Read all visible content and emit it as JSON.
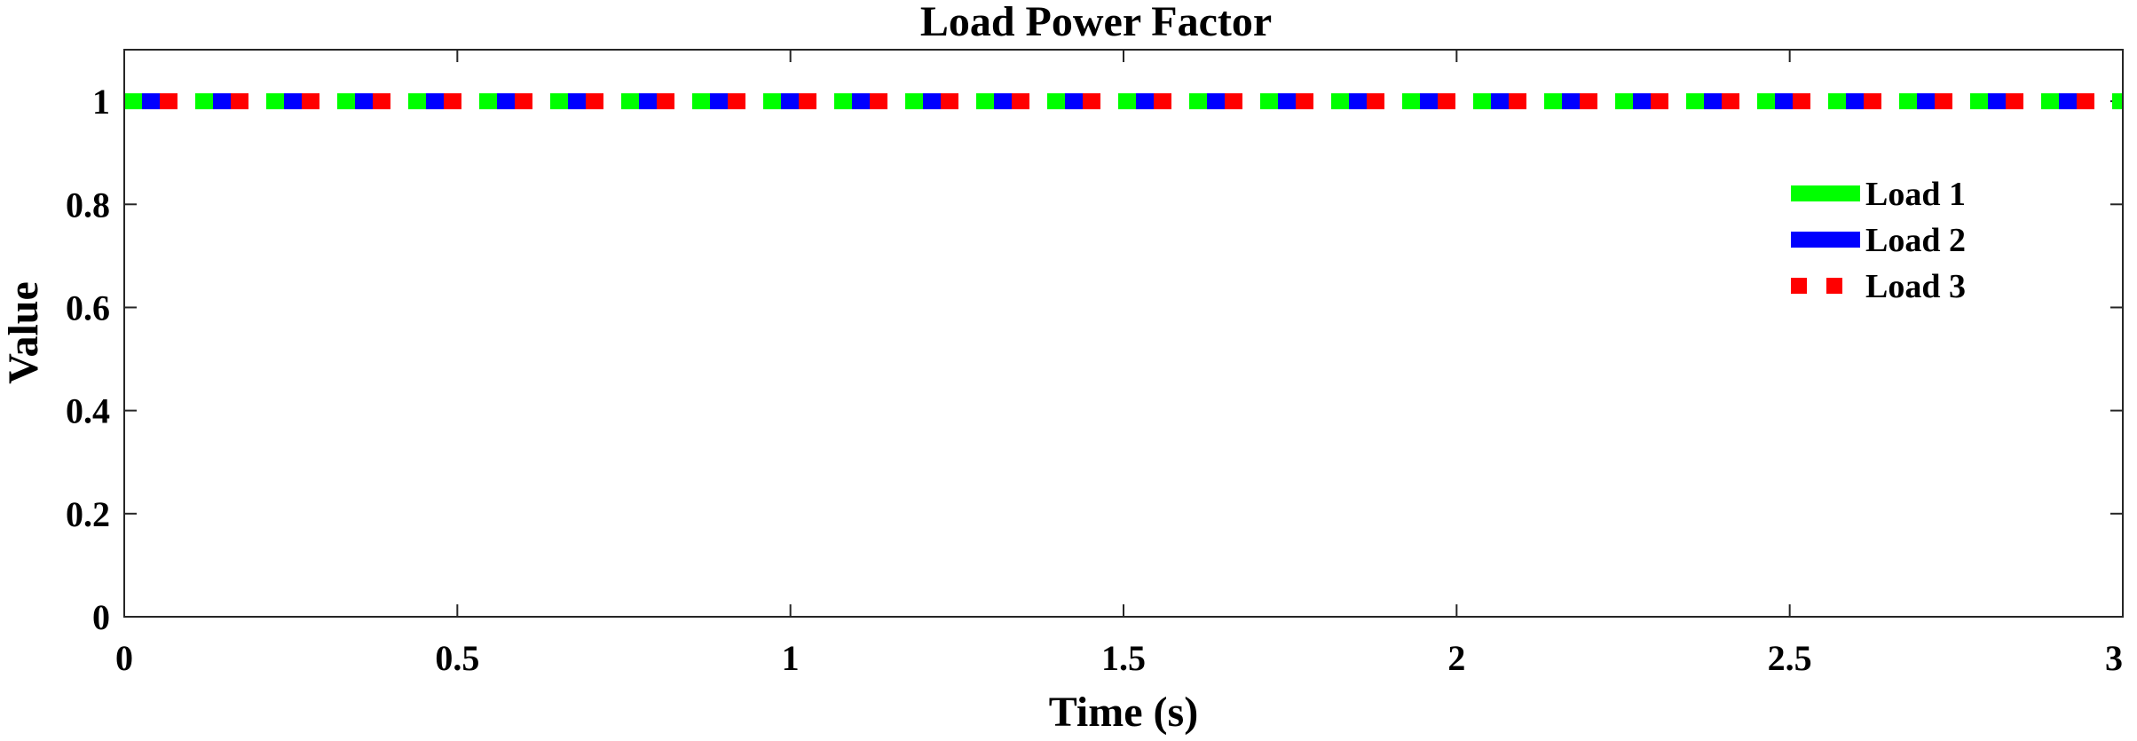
{
  "chart_data": {
    "type": "line",
    "title": "Load Power Factor",
    "xlabel": "Time (s)",
    "ylabel": "Value",
    "xlim": [
      0,
      3
    ],
    "ylim": [
      0,
      1.1
    ],
    "xticks": [
      0,
      0.5,
      1,
      1.5,
      2,
      2.5,
      3
    ],
    "xtick_labels": [
      "0",
      "0.5",
      "1",
      "1.5",
      "2",
      "2.5",
      "3"
    ],
    "yticks": [
      0,
      0.2,
      0.4,
      0.6,
      0.8,
      1
    ],
    "ytick_labels": [
      "0",
      "0.2",
      "0.4",
      "0.6",
      "0.8",
      "1"
    ],
    "grid": false,
    "legend_position": "right",
    "series": [
      {
        "name": "Load 1",
        "color": "#00ff00",
        "style": "solid",
        "x": [
          0,
          3
        ],
        "values": [
          1,
          1
        ]
      },
      {
        "name": "Load 2",
        "color": "#0000ff",
        "style": "solid",
        "x": [
          0,
          3
        ],
        "values": [
          1,
          1
        ]
      },
      {
        "name": "Load 3",
        "color": "#ff0000",
        "style": "dotted",
        "x": [
          0,
          3
        ],
        "values": [
          1,
          1
        ]
      }
    ]
  }
}
